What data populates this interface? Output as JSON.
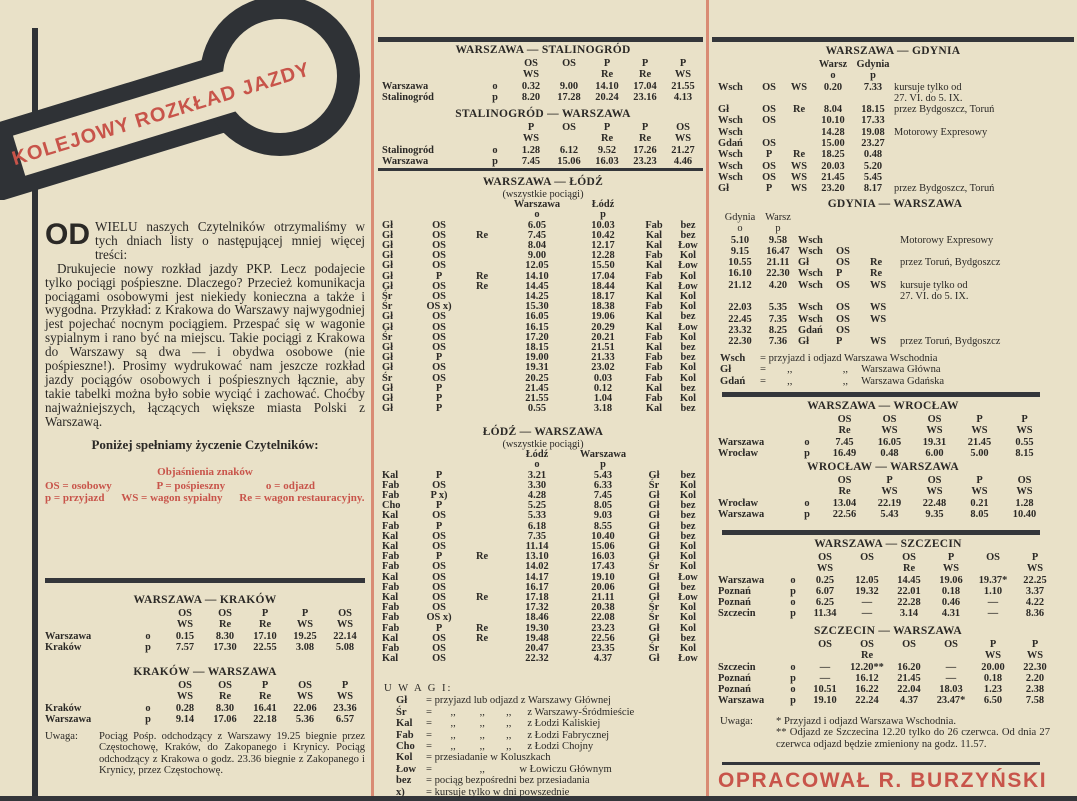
{
  "logo": {
    "text": "KOLEJOWY ROZKŁAD JAZDY"
  },
  "intro": {
    "dropcap": "OD",
    "paragraphs": [
      "WIELU naszych Czytelników otrzymaliśmy w tych dniach listy o następującej mniej więcej treści:",
      "Drukujecie nowy rozkład jazdy PKP. Lecz podajecie tylko pociągi pośpieszne. Dlaczego? Przecież komunikacja pociągami osobowymi jest niekiedy konieczna a także i wygodna. Przykład: z Krakowa do Warszawy najwygodniej jest pojechać nocnym pociągiem. Przespać się w wagonie sypialnym i rano być na miejscu. Takie pociągi z Krakowa do Warszawy są dwa — i obydwa osobowe (nie pośpieszne!). Prosimy wydrukować nam jeszcze rozkład jazdy pociągów osobowych i pośpiesznych łącznie, aby takie tabelki można było sobie wyciąć i zachować. Choćby najważniejszych, łączących większe miasta Polski z Warszawą."
    ],
    "closing": "Poniżej spełniamy życzenie Czytelników:"
  },
  "legend": {
    "title": "Objaśnienia znaków",
    "items": [
      "OS = osobowy",
      "P = pośpieszny",
      "o = odjazd",
      "p = przyjazd",
      "WS = wagon sypialny",
      "Re = wagon restauracyjny."
    ]
  },
  "tables": {
    "wk": {
      "title": "WARSZAWA — KRAKÓW",
      "rows": [
        [
          "",
          "",
          "OS",
          "OS",
          "P",
          "P",
          "OS"
        ],
        [
          "",
          "",
          "WS",
          "Re",
          "Re",
          "WS",
          "WS"
        ],
        [
          "Warszawa",
          "o",
          "0.15",
          "8.30",
          "17.10",
          "19.25",
          "22.14"
        ],
        [
          "Kraków",
          "p",
          "7.57",
          "17.30",
          "22.55",
          "3.08",
          "5.08"
        ]
      ]
    },
    "kw": {
      "title": "KRAKÓW — WARSZAWA",
      "rows": [
        [
          "",
          "",
          "OS",
          "OS",
          "P",
          "OS",
          "P"
        ],
        [
          "",
          "",
          "WS",
          "Re",
          "Re",
          "WS",
          "WS"
        ],
        [
          "Kraków",
          "o",
          "0.28",
          "8.30",
          "16.41",
          "22.06",
          "23.36"
        ],
        [
          "Warszawa",
          "p",
          "9.14",
          "17.06",
          "22.18",
          "5.36",
          "6.57"
        ]
      ]
    },
    "ws": {
      "title": "WARSZAWA — STALINOGRÓD",
      "rows": [
        [
          "",
          "",
          "OS",
          "OS",
          "P",
          "P",
          "P"
        ],
        [
          "",
          "",
          "WS",
          "",
          "Re",
          "Re",
          "WS"
        ],
        [
          "Warszawa",
          "o",
          "0.32",
          "9.00",
          "14.10",
          "17.04",
          "21.55"
        ],
        [
          "Stalinogród",
          "p",
          "8.20",
          "17.28",
          "20.24",
          "23.16",
          "4.13"
        ]
      ]
    },
    "sw": {
      "title": "STALINOGRÓD — WARSZAWA",
      "rows": [
        [
          "",
          "",
          "P",
          "OS",
          "P",
          "P",
          "OS"
        ],
        [
          "",
          "",
          "WS",
          "",
          "Re",
          "Re",
          "WS"
        ],
        [
          "Stalinogród",
          "o",
          "1.28",
          "6.12",
          "9.52",
          "17.26",
          "21.27"
        ],
        [
          "Warszawa",
          "p",
          "7.45",
          "15.06",
          "16.03",
          "23.23",
          "4.46"
        ]
      ]
    },
    "wl": {
      "title": "WARSZAWA — ŁÓDŹ",
      "subtitle": "(wszystkie pociągi)",
      "rows": [
        [
          "",
          "",
          "",
          "Warszawa",
          "Łódź",
          "",
          ""
        ],
        [
          "",
          "",
          "",
          "o",
          "p",
          "",
          ""
        ],
        [
          "Gł",
          "OS",
          "",
          "6.05",
          "10.03",
          "Fab",
          "bez"
        ],
        [
          "Gł",
          "OS",
          "Re",
          "7.45",
          "10.42",
          "Kal",
          "bez"
        ],
        [
          "Gł",
          "OS",
          "",
          "8.04",
          "12.17",
          "Kal",
          "Łow"
        ],
        [
          "Gł",
          "OS",
          "",
          "9.00",
          "12.28",
          "Fab",
          "Kol"
        ],
        [
          "Gł",
          "OS",
          "",
          "12.05",
          "15.50",
          "Kal",
          "Łow"
        ],
        [
          "Gł",
          "P",
          "Re",
          "14.10",
          "17.04",
          "Fab",
          "Kol"
        ],
        [
          "Gł",
          "OS",
          "Re",
          "14.45",
          "18.44",
          "Kal",
          "Łow"
        ],
        [
          "Śr",
          "OS",
          "",
          "14.25",
          "18.17",
          "Kal",
          "Kol"
        ],
        [
          "Śr",
          "OS x)",
          "",
          "15.30",
          "18.38",
          "Fab",
          "Kol"
        ],
        [
          "Gł",
          "OS",
          "",
          "16.05",
          "19.06",
          "Kal",
          "bez"
        ],
        [
          "Gł",
          "OS",
          "",
          "16.15",
          "20.29",
          "Kal",
          "Łow"
        ],
        [
          "Śr",
          "OS",
          "",
          "17.20",
          "20.21",
          "Fab",
          "Kol"
        ],
        [
          "Gł",
          "OS",
          "",
          "18.15",
          "21.51",
          "Kal",
          "bez"
        ],
        [
          "Gł",
          "P",
          "",
          "19.00",
          "21.33",
          "Fab",
          "bez"
        ],
        [
          "Gł",
          "OS",
          "",
          "19.31",
          "23.02",
          "Fab",
          "Kol"
        ],
        [
          "Śr",
          "OS",
          "",
          "20.25",
          "0.03",
          "Fab",
          "Kol"
        ],
        [
          "Gł",
          "P",
          "",
          "21.45",
          "0.12",
          "Kal",
          "bez"
        ],
        [
          "Gł",
          "P",
          "",
          "21.55",
          "1.04",
          "Fab",
          "Kol"
        ],
        [
          "Gł",
          "P",
          "",
          "0.55",
          "3.18",
          "Kal",
          "bez"
        ]
      ]
    },
    "lw": {
      "title": "ŁÓDŹ — WARSZAWA",
      "subtitle": "(wszystkie pociągi)",
      "rows": [
        [
          "",
          "",
          "",
          "Łódź",
          "Warszawa",
          "",
          ""
        ],
        [
          "",
          "",
          "",
          "o",
          "p",
          "",
          ""
        ],
        [
          "Kal",
          "P",
          "",
          "3.21",
          "5.43",
          "Gł",
          "bez"
        ],
        [
          "Fab",
          "OS",
          "",
          "3.30",
          "6.33",
          "Śr",
          "Kol"
        ],
        [
          "Fab",
          "P x)",
          "",
          "4.28",
          "7.45",
          "Gł",
          "Kol"
        ],
        [
          "Cho",
          "P",
          "",
          "5.25",
          "8.05",
          "Gł",
          "bez"
        ],
        [
          "Kal",
          "OS",
          "",
          "5.33",
          "9.03",
          "Gł",
          "bez"
        ],
        [
          "Fab",
          "P",
          "",
          "6.18",
          "8.55",
          "Gł",
          "bez"
        ],
        [
          "Kal",
          "OS",
          "",
          "7.35",
          "10.40",
          "Gł",
          "bez"
        ],
        [
          "Kal",
          "OS",
          "",
          "11.14",
          "15.06",
          "Gł",
          "Kol"
        ],
        [
          "Fab",
          "P",
          "Re",
          "13.10",
          "16.03",
          "Gł",
          "Kol"
        ],
        [
          "Fab",
          "OS",
          "",
          "14.02",
          "17.43",
          "Śr",
          "Kol"
        ],
        [
          "Kal",
          "OS",
          "",
          "14.17",
          "19.10",
          "Gł",
          "Łow"
        ],
        [
          "Fab",
          "OS",
          "",
          "16.17",
          "20.06",
          "Gł",
          "bez"
        ],
        [
          "Kal",
          "OS",
          "Re",
          "17.18",
          "21.11",
          "Gł",
          "Łow"
        ],
        [
          "Fab",
          "OS",
          "",
          "17.32",
          "20.38",
          "Śr",
          "Kol"
        ],
        [
          "Fab",
          "OS x)",
          "",
          "18.46",
          "22.08",
          "Śr",
          "Kol"
        ],
        [
          "Fab",
          "P",
          "Re",
          "19.30",
          "23.23",
          "Gł",
          "Kol"
        ],
        [
          "Kal",
          "OS",
          "Re",
          "19.48",
          "22.56",
          "Gł",
          "bez"
        ],
        [
          "Fab",
          "OS",
          "",
          "20.47",
          "23.35",
          "Śr",
          "Kol"
        ],
        [
          "Kal",
          "OS",
          "",
          "22.32",
          "4.37",
          "Gł",
          "Łow"
        ]
      ]
    },
    "wg": {
      "title": "WARSZAWA — GDYNIA",
      "rows": [
        [
          "",
          "",
          "",
          "Warsz",
          "Gdynia",
          ""
        ],
        [
          "",
          "",
          "",
          "o",
          "p",
          ""
        ],
        [
          "Wsch",
          "OS",
          "WS",
          "0.20",
          "7.33",
          "kursuje tylko od"
        ],
        [
          "",
          "",
          "",
          "",
          "",
          "27. VI. do 5. IX."
        ],
        [
          "Gł",
          "OS",
          "Re",
          "8.04",
          "18.15",
          "przez Bydgoszcz, Toruń"
        ],
        [
          "Wsch",
          "OS",
          "",
          "10.10",
          "17.33",
          ""
        ],
        [
          "Wsch",
          "",
          "",
          "14.28",
          "19.08",
          "Motorowy Expresowy"
        ],
        [
          "Gdań",
          "OS",
          "",
          "15.00",
          "23.27",
          ""
        ],
        [
          "Wsch",
          "P",
          "Re",
          "18.25",
          "0.48",
          ""
        ],
        [
          "Wsch",
          "OS",
          "WS",
          "20.03",
          "5.20",
          ""
        ],
        [
          "Wsch",
          "OS",
          "WS",
          "21.45",
          "5.45",
          ""
        ],
        [
          "Gł",
          "P",
          "WS",
          "23.20",
          "8.17",
          "przez Bydgoszcz, Toruń"
        ]
      ]
    },
    "gw": {
      "title": "GDYNIA — WARSZAWA",
      "rows": [
        [
          "Gdynia",
          "Warsz",
          "",
          "",
          "",
          ""
        ],
        [
          "o",
          "p",
          "",
          "",
          "",
          ""
        ],
        [
          "5.10",
          "9.58",
          "Wsch",
          "",
          "",
          "Motorowy Expresowy"
        ],
        [
          "9.15",
          "16.47",
          "Wsch",
          "OS",
          "",
          ""
        ],
        [
          "10.55",
          "21.11",
          "Gł",
          "OS",
          "Re",
          "przez Toruń, Bydgoszcz"
        ],
        [
          "16.10",
          "22.30",
          "Wsch",
          "P",
          "Re",
          ""
        ],
        [
          "21.12",
          "4.20",
          "Wsch",
          "OS",
          "WS",
          "kursuje tylko od"
        ],
        [
          "",
          "",
          "",
          "",
          "",
          "27. VI. do 5. IX."
        ],
        [
          "22.03",
          "5.35",
          "Wsch",
          "OS",
          "WS",
          ""
        ],
        [
          "22.45",
          "7.35",
          "Wsch",
          "OS",
          "WS",
          ""
        ],
        [
          "23.32",
          "8.25",
          "Gdań",
          "OS",
          "",
          ""
        ],
        [
          "22.30",
          "7.36",
          "Gł",
          "P",
          "WS",
          "przez Toruń, Bydgoszcz"
        ]
      ]
    },
    "ww": {
      "title": "WARSZAWA — WROCŁAW",
      "rows": [
        [
          "",
          "",
          "OS",
          "OS",
          "OS",
          "P",
          "P"
        ],
        [
          "",
          "",
          "Re",
          "WS",
          "WS",
          "WS",
          "WS"
        ],
        [
          "Warszawa",
          "o",
          "7.45",
          "16.05",
          "19.31",
          "21.45",
          "0.55"
        ],
        [
          "Wrocław",
          "p",
          "16.49",
          "0.48",
          "6.00",
          "5.00",
          "8.15"
        ]
      ]
    },
    "rw": {
      "title": "WROCŁAW — WARSZAWA",
      "rows": [
        [
          "",
          "",
          "OS",
          "P",
          "OS",
          "P",
          "OS"
        ],
        [
          "",
          "",
          "Re",
          "WS",
          "WS",
          "WS",
          "WS"
        ],
        [
          "Wrocław",
          "o",
          "13.04",
          "22.19",
          "22.48",
          "0.21",
          "1.28"
        ],
        [
          "Warszawa",
          "p",
          "22.56",
          "5.43",
          "9.35",
          "8.05",
          "10.40"
        ]
      ]
    },
    "wsz": {
      "title": "WARSZAWA — SZCZECIN",
      "rows": [
        [
          "",
          "",
          "OS",
          "OS",
          "OS",
          "P",
          "OS",
          "P"
        ],
        [
          "",
          "",
          "WS",
          "",
          "Re",
          "WS",
          "",
          "WS"
        ],
        [
          "Warszawa",
          "o",
          "0.25",
          "12.05",
          "14.45",
          "19.06",
          "19.37*",
          "22.25"
        ],
        [
          "Poznań",
          "p",
          "6.07",
          "19.32",
          "22.01",
          "0.18",
          "1.10",
          "3.37"
        ],
        [
          "Poznań",
          "o",
          "6.25",
          "—",
          "22.28",
          "0.46",
          "—",
          "4.22"
        ],
        [
          "Szczecin",
          "p",
          "11.34",
          "—",
          "3.14",
          "4.31",
          "—",
          "8.36"
        ]
      ]
    },
    "szw": {
      "title": "SZCZECIN — WARSZAWA",
      "rows": [
        [
          "",
          "",
          "OS",
          "OS",
          "OS",
          "OS",
          "P",
          "P"
        ],
        [
          "",
          "",
          "",
          "Re",
          "",
          "",
          "WS",
          "WS"
        ],
        [
          "Szczecin",
          "o",
          "—",
          "12.20**",
          "16.20",
          "—",
          "20.00",
          "22.30"
        ],
        [
          "Poznań",
          "p",
          "—",
          "16.12",
          "21.45",
          "—",
          "0.18",
          "2.20"
        ],
        [
          "Poznań",
          "o",
          "10.51",
          "16.22",
          "22.04",
          "18.03",
          "1.23",
          "2.38"
        ],
        [
          "Warszawa",
          "p",
          "19.10",
          "22.24",
          "4.37",
          "23.47*",
          "6.50",
          "7.58"
        ]
      ]
    }
  },
  "notes": {
    "krakow": {
      "label": "Uwaga:",
      "text": "Pociąg Pośp. odchodzący z Warszawy 19.25 biegnie przez Częstochowę, Kraków, do Zakopanego i Krynicy. Pociąg odchodzący z Krakowa o godz. 23.36 biegnie z Zakopanego i Krynicy, przez Częstochowę."
    },
    "uwagi": {
      "title": "U W A G I:",
      "rows": [
        [
          "Gł",
          "= przyjazd lub odjazd z Warszawy Głównej"
        ],
        [
          "Śr",
          "=       ,,         ,,        ,,      z Warszawy-Śródmieście"
        ],
        [
          "Kal",
          "=       ,,         ,,        ,,      z Łodzi Kaliskiej"
        ],
        [
          "Fab",
          "=       ,,         ,,        ,,      z Łodzi Fabrycznej"
        ],
        [
          "Cho",
          "=       ,,         ,,        ,,      z Łodzi Chojny"
        ],
        [
          "Kol",
          "= przesiadanie w Koluszkach"
        ],
        [
          "Łow",
          "=                  ,,             w Łowiczu Głównym"
        ],
        [
          "bez",
          "= pociąg bezpośredni bez przesiadania"
        ],
        [
          "x)",
          "= kursuje tylko w dni powszednie"
        ]
      ]
    },
    "gdynia": {
      "rows": [
        [
          "Wsch",
          "= przyjazd i odjazd Warszawa Wschodnia"
        ],
        [
          "Gł",
          "=        ,,                   ,,     Warszawa Główna"
        ],
        [
          "Gdań",
          "=        ,,                   ,,     Warszawa Gdańska"
        ]
      ]
    },
    "szczecin": {
      "label": "Uwaga:",
      "lines": [
        "* Przyjazd i odjazd Warszawa Wschodnia.",
        "** Odjazd ze Szczecina 12.20 tylko do 26 czerwca. Od dnia 27 czerwca odjazd będzie zmieniony na godz. 11.57."
      ]
    }
  },
  "signature": "OPRACOWAŁ R. BURZYŃSKI",
  "colors": {
    "paper": "#e9e1c8",
    "ink": "#2b2926",
    "accent_red": "#c8544a"
  }
}
